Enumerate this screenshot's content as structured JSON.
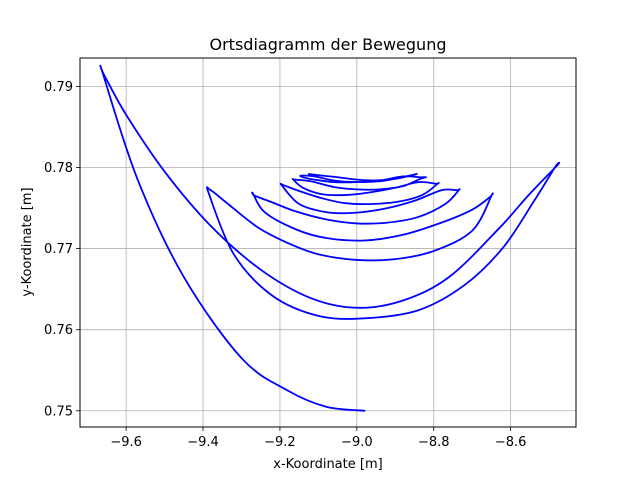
{
  "chart_data": {
    "type": "line",
    "title": "Ortsdiagramm der Bewegung",
    "xlabel": "x-Koordinate [m]",
    "ylabel": "y-Koordinate [m]",
    "xlim": [
      -9.72,
      -8.43
    ],
    "ylim": [
      0.748,
      0.7935
    ],
    "xticks": [
      -9.6,
      -9.4,
      -9.2,
      -9.0,
      -8.8,
      -8.6
    ],
    "xtick_labels": [
      "−9.6",
      "−9.4",
      "−9.2",
      "−9.0",
      "−8.8",
      "−8.6"
    ],
    "yticks": [
      0.75,
      0.76,
      0.77,
      0.78,
      0.79
    ],
    "ytick_labels": [
      "0.75",
      "0.76",
      "0.77",
      "0.78",
      "0.79"
    ],
    "grid": true,
    "legend": "none",
    "series": [
      {
        "color": "#0000ff",
        "x": [
          -8.98,
          -9.08,
          -9.18,
          -9.3,
          -9.45,
          -9.57,
          -9.66,
          -9.655,
          -9.6,
          -9.5,
          -9.38,
          -9.25,
          -9.12,
          -9.0,
          -8.88,
          -8.76,
          -8.63,
          -8.555,
          -8.48,
          -8.485,
          -8.54,
          -8.62,
          -8.72,
          -8.84,
          -8.98,
          -9.1,
          -9.22,
          -9.32,
          -9.385,
          -9.38,
          -9.34,
          -9.26,
          -9.18,
          -9.1,
          -9.0,
          -8.9,
          -8.8,
          -8.7,
          -8.65,
          -8.655,
          -8.7,
          -8.78,
          -8.88,
          -8.98,
          -9.08,
          -9.16,
          -9.24,
          -9.27,
          -9.265,
          -9.22,
          -9.16,
          -9.08,
          -9.0,
          -8.92,
          -8.84,
          -8.77,
          -8.735,
          -8.74,
          -8.78,
          -8.85,
          -8.93,
          -9.01,
          -9.08,
          -9.15,
          -9.195,
          -9.19,
          -9.15,
          -9.09,
          -9.03,
          -8.96,
          -8.89,
          -8.83,
          -8.79,
          -8.795,
          -8.84,
          -8.9,
          -8.97,
          -9.03,
          -9.09,
          -9.14,
          -9.165,
          -9.16,
          -9.12,
          -9.06,
          -9.0,
          -8.94,
          -8.88,
          -8.835,
          -8.82,
          -8.835,
          -8.88,
          -8.94,
          -9.0,
          -9.06,
          -9.11,
          -9.14,
          -9.145,
          -9.11,
          -9.06,
          -9.0,
          -8.94,
          -8.89,
          -8.845,
          -8.86,
          -8.9,
          -8.95,
          -9.0,
          -9.05,
          -9.09,
          -9.125
        ],
        "y": [
          0.75,
          0.7505,
          0.7525,
          0.7565,
          0.7665,
          0.7785,
          0.7915,
          0.7912,
          0.7865,
          0.7795,
          0.7728,
          0.7674,
          0.7639,
          0.7627,
          0.7636,
          0.7665,
          0.7725,
          0.7765,
          0.7802,
          0.78,
          0.7758,
          0.7701,
          0.7655,
          0.7624,
          0.7614,
          0.7617,
          0.7642,
          0.7693,
          0.7768,
          0.7772,
          0.7757,
          0.7727,
          0.7707,
          0.7693,
          0.7686,
          0.7687,
          0.7697,
          0.7722,
          0.7765,
          0.7763,
          0.7748,
          0.7732,
          0.7717,
          0.771,
          0.7713,
          0.7724,
          0.7745,
          0.7768,
          0.7765,
          0.7757,
          0.7746,
          0.7736,
          0.7731,
          0.7732,
          0.7739,
          0.7755,
          0.7772,
          0.7772,
          0.7772,
          0.7759,
          0.7749,
          0.7744,
          0.7745,
          0.7755,
          0.7778,
          0.7778,
          0.7771,
          0.7762,
          0.7756,
          0.7755,
          0.7758,
          0.7766,
          0.778,
          0.778,
          0.7782,
          0.7775,
          0.7769,
          0.7766,
          0.7767,
          0.7775,
          0.7785,
          0.7785,
          0.7783,
          0.7776,
          0.7773,
          0.7773,
          0.7777,
          0.7786,
          0.7788,
          0.7788,
          0.7789,
          0.7784,
          0.7782,
          0.7782,
          0.7785,
          0.7788,
          0.779,
          0.7789,
          0.7784,
          0.7782,
          0.7783,
          0.7787,
          0.7792,
          0.779,
          0.7786,
          0.7784,
          0.7785,
          0.7788,
          0.779,
          0.7792
        ]
      }
    ]
  }
}
